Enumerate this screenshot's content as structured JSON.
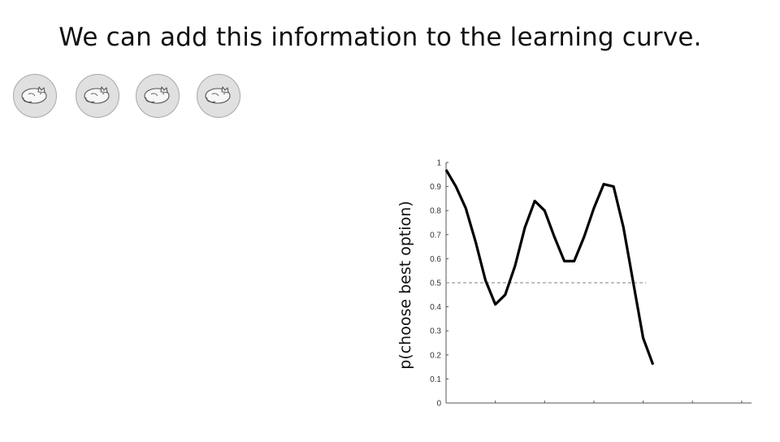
{
  "slide": {
    "title": "We can add this information to the learning curve."
  },
  "tokens": {
    "count": 4,
    "icon": "sleeping-cat-icon",
    "fill": "#e0e0e0"
  },
  "chart_data": {
    "type": "line",
    "title": "",
    "xlabel": "",
    "ylabel": "p(choose best option)",
    "ylim": [
      0,
      1
    ],
    "xlim": [
      0,
      31
    ],
    "yticks": [
      "0",
      "0.1",
      "0.2",
      "0.3",
      "0.4",
      "0.5",
      "0.6",
      "0.7",
      "0.8",
      "0.9",
      "1"
    ],
    "xtick_count": 6,
    "grid": false,
    "reference_line": {
      "y": 0.5,
      "style": "dashed",
      "color": "#808080"
    },
    "series": [
      {
        "color": "#000000",
        "x": [
          0,
          1,
          2,
          3,
          4,
          5,
          6,
          7,
          8,
          9,
          10,
          11,
          12,
          13,
          14,
          15,
          16,
          17,
          18,
          19,
          20,
          21
        ],
        "values": [
          0.97,
          0.9,
          0.81,
          0.67,
          0.51,
          0.41,
          0.45,
          0.57,
          0.73,
          0.84,
          0.8,
          0.69,
          0.59,
          0.59,
          0.69,
          0.81,
          0.91,
          0.9,
          0.73,
          0.5,
          0.27,
          0.16
        ]
      }
    ]
  }
}
